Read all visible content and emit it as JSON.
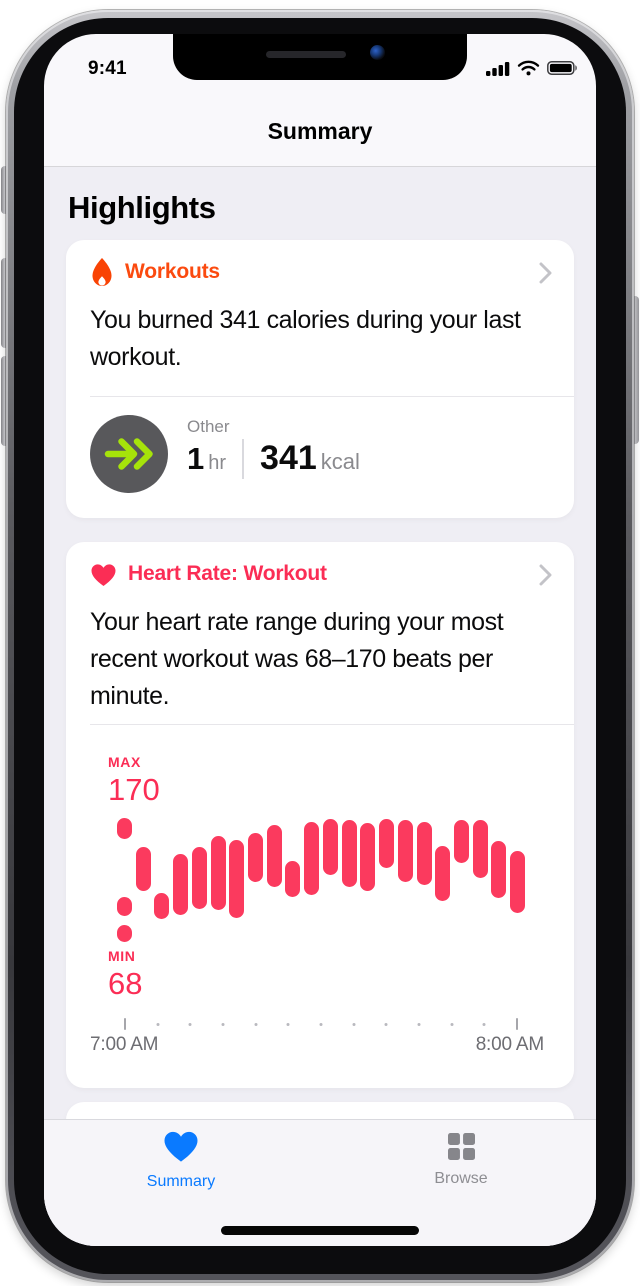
{
  "status_bar": {
    "time": "9:41",
    "icons": [
      "cellular-signal-icon",
      "wifi-icon",
      "battery-full-icon"
    ]
  },
  "nav": {
    "title": "Summary"
  },
  "section": {
    "heading": "Highlights"
  },
  "workouts_card": {
    "icon": "flame-icon",
    "title": "Workouts",
    "title_color": "#fb4a0f",
    "message": "You burned 341 calories during your last workout.",
    "activity": {
      "icon": "other-workout-icon",
      "label": "Other",
      "duration_value": "1",
      "duration_unit": "hr",
      "energy_value": "341",
      "energy_unit": "kcal"
    }
  },
  "heart_card": {
    "icon": "heart-icon",
    "title": "Heart Rate: Workout",
    "title_color": "#fb2d55",
    "message": "Your heart rate range during your most recent workout was 68–170 beats per minute."
  },
  "chart_data": {
    "type": "bar",
    "title": "Heart Rate: Workout",
    "ylabel": "beats per minute",
    "ylim": [
      68,
      170
    ],
    "y_max_label": "MAX",
    "y_max_value": "170",
    "y_min_label": "MIN",
    "y_min_value": "68",
    "x_tick_labels": [
      "7:00 AM",
      "8:00 AM"
    ],
    "x_tick_count": 13,
    "grid": false,
    "legend": "none",
    "bar_color": "#fb3a5e",
    "columns": [
      [
        [
          170,
          153
        ],
        [
          105,
          89
        ],
        [
          82,
          68
        ]
      ],
      [
        [
          146,
          110
        ]
      ],
      [
        [
          108,
          87
        ]
      ],
      [
        [
          140,
          90
        ]
      ],
      [
        [
          146,
          95
        ]
      ],
      [
        [
          155,
          94
        ]
      ],
      [
        [
          152,
          88
        ]
      ],
      [
        [
          158,
          117
        ]
      ],
      [
        [
          164,
          113
        ]
      ],
      [
        [
          135,
          105
        ]
      ],
      [
        [
          167,
          107
        ]
      ],
      [
        [
          169,
          123
        ]
      ],
      [
        [
          168,
          113
        ]
      ],
      [
        [
          166,
          110
        ]
      ],
      [
        [
          169,
          129
        ]
      ],
      [
        [
          168,
          117
        ]
      ],
      [
        [
          167,
          115
        ]
      ],
      [
        [
          147,
          102
        ]
      ],
      [
        [
          168,
          133
        ]
      ],
      [
        [
          168,
          121
        ]
      ],
      [
        [
          151,
          104
        ]
      ],
      [
        [
          143,
          92
        ]
      ]
    ]
  },
  "tab_bar": {
    "active_color": "#0a7aff",
    "inactive_color": "#8e8e93",
    "items": [
      {
        "icon": "heart-icon",
        "label": "Summary",
        "active": true
      },
      {
        "icon": "grid-icon",
        "label": "Browse",
        "active": false
      }
    ]
  }
}
